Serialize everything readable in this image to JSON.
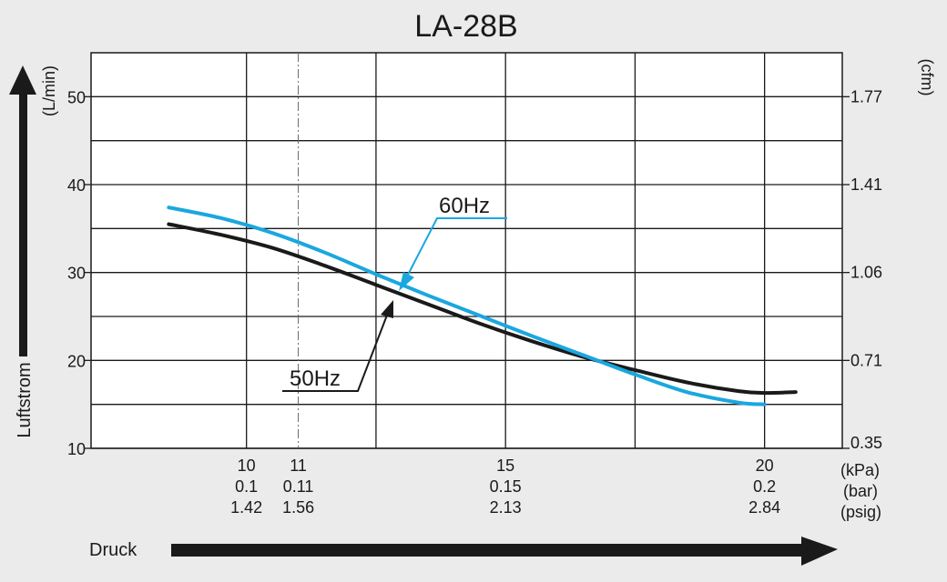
{
  "chart_data": {
    "type": "line",
    "title": "LA-28B",
    "ylabel_left": "Luftstrom",
    "yunit_left": "(L/min)",
    "yunit_right": "(cfm)",
    "xlabel": "Druck",
    "xlim": [
      7.0,
      21.5
    ],
    "ylim": [
      10,
      55
    ],
    "y_ticks_left": [
      {
        "value": 10,
        "label": "10"
      },
      {
        "value": 20,
        "label": "20"
      },
      {
        "value": 30,
        "label": "30"
      },
      {
        "value": 40,
        "label": "40"
      },
      {
        "value": 50,
        "label": "50"
      }
    ],
    "y_ticks_right": [
      {
        "value": 10,
        "label": "0.35"
      },
      {
        "value": 20,
        "label": "0.71"
      },
      {
        "value": 30,
        "label": "1.06"
      },
      {
        "value": 40,
        "label": "1.41"
      },
      {
        "value": 50,
        "label": "1.77"
      }
    ],
    "x_ticks": [
      {
        "value": 10,
        "kpa": "10",
        "bar": "0.1",
        "psig": "1.42"
      },
      {
        "value": 11,
        "kpa": "11",
        "bar": "0.11",
        "psig": "1.56"
      },
      {
        "value": 15,
        "kpa": "15",
        "bar": "0.15",
        "psig": "2.13"
      },
      {
        "value": 20,
        "kpa": "20",
        "bar": "0.2",
        "psig": "2.84"
      }
    ],
    "x_units": [
      "(kPa)",
      "(bar)",
      "(psig)"
    ],
    "x_grid": [
      10,
      12.5,
      15,
      17.5,
      20
    ],
    "y_grid": [
      10,
      15,
      20,
      25,
      30,
      35,
      40,
      45,
      50
    ],
    "marker_line_x": 11,
    "series": [
      {
        "name": "60Hz",
        "color": "#1aa7df",
        "x": [
          8.5,
          9.5,
          10.5,
          11.5,
          12.5,
          13.5,
          14.5,
          15.5,
          16.5,
          17.5,
          18.5,
          19.5,
          20.0
        ],
        "y": [
          37.4,
          36.2,
          34.5,
          32.3,
          29.8,
          27.4,
          25.1,
          22.8,
          20.6,
          18.4,
          16.4,
          15.2,
          15.0
        ]
      },
      {
        "name": "50Hz",
        "color": "#1a1a1a",
        "x": [
          8.5,
          9.5,
          10.5,
          11.5,
          12.5,
          13.5,
          14.5,
          15.5,
          16.5,
          17.5,
          18.5,
          19.5,
          20.0,
          20.6
        ],
        "y": [
          35.5,
          34.3,
          32.8,
          30.8,
          28.6,
          26.4,
          24.2,
          22.2,
          20.4,
          18.9,
          17.5,
          16.5,
          16.3,
          16.4
        ]
      }
    ]
  }
}
